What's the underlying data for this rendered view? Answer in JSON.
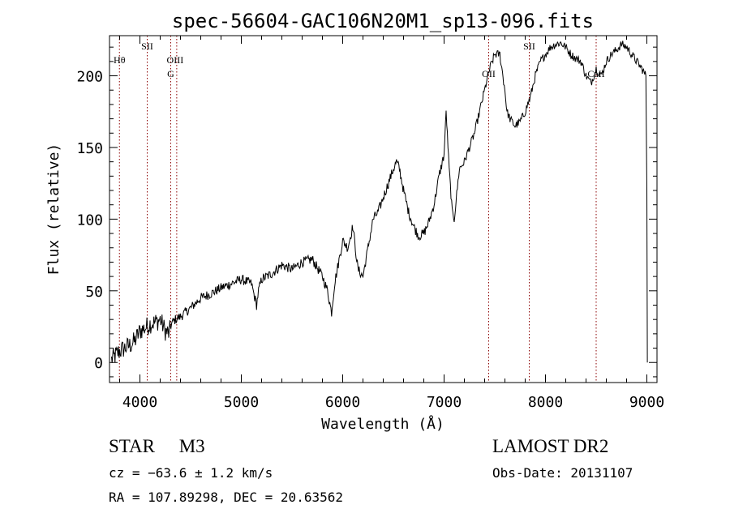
{
  "chart_data": {
    "type": "line",
    "title": "spec-56604-GAC106N20M1_sp13-096.fits",
    "xlabel": "Wavelength (Å)",
    "ylabel": "Flux (relative)",
    "xlim": [
      3700,
      9100
    ],
    "ylim": [
      -14,
      228
    ],
    "xticks": [
      4000,
      5000,
      6000,
      7000,
      8000,
      9000
    ],
    "yticks": [
      0,
      50,
      100,
      150,
      200
    ],
    "grid": false,
    "series": [
      {
        "x": [
          3720,
          3760,
          3800,
          3850,
          3900,
          3950,
          4000,
          4050,
          4100,
          4150,
          4200,
          4250,
          4290,
          4300,
          4320,
          4350,
          4400,
          4500,
          4600,
          4700,
          4800,
          4900,
          5000,
          5100,
          5150,
          5170,
          5200,
          5300,
          5400,
          5500,
          5600,
          5700,
          5800,
          5850,
          5890,
          5920,
          6000,
          6050,
          6100,
          6150,
          6200,
          6250,
          6300,
          6350,
          6400,
          6450,
          6500,
          6530,
          6560,
          6600,
          6650,
          6700,
          6750,
          6800,
          6850,
          6900,
          6950,
          7000,
          7020,
          7050,
          7080,
          7100,
          7150,
          7200,
          7250,
          7300,
          7350,
          7400,
          7450,
          7500,
          7550,
          7600,
          7620,
          7650,
          7700,
          7750,
          7800,
          7850,
          7900,
          7950,
          8000,
          8050,
          8100,
          8150,
          8200,
          8250,
          8300,
          8350,
          8400,
          8450,
          8500,
          8550,
          8600,
          8650,
          8700,
          8750,
          8800,
          8850,
          8900,
          8950,
          8990,
          9000,
          9005
        ],
        "y": [
          2,
          5,
          8,
          10,
          12,
          15,
          22,
          24,
          27,
          28,
          30,
          22,
          20,
          25,
          28,
          30,
          32,
          38,
          45,
          48,
          52,
          55,
          58,
          55,
          40,
          50,
          58,
          62,
          68,
          65,
          70,
          72,
          60,
          50,
          35,
          55,
          85,
          80,
          95,
          65,
          60,
          80,
          100,
          105,
          115,
          125,
          135,
          140,
          135,
          120,
          105,
          95,
          88,
          90,
          98,
          110,
          130,
          145,
          175,
          135,
          105,
          100,
          135,
          140,
          150,
          160,
          175,
          190,
          205,
          215,
          215,
          190,
          175,
          170,
          165,
          168,
          175,
          185,
          200,
          210,
          215,
          220,
          222,
          223,
          220,
          215,
          212,
          210,
          200,
          195,
          205,
          200,
          210,
          215,
          218,
          222,
          220,
          215,
          210,
          205,
          200,
          120,
          0
        ]
      }
    ],
    "lines": [
      {
        "label": "Hθ",
        "x": 3798
      },
      {
        "label": "SII",
        "x": 4072
      },
      {
        "label": "OIII",
        "x": 4363
      },
      {
        "label": "G",
        "x": 4304
      },
      {
        "label": "OII",
        "x": 7440
      },
      {
        "label": "SII",
        "x": 7840
      },
      {
        "label": "CaII",
        "x": 8500
      }
    ],
    "line_color": "#8b0000",
    "series_color": "#000000"
  },
  "info": {
    "object": "STAR",
    "subclass": "M3",
    "cz": "cz = −63.6 ± 1.2 km/s",
    "radec": "RA = 107.89298, DEC =  20.63562",
    "survey": "LAMOST DR2",
    "obsdate": "Obs-Date: 20131107"
  }
}
